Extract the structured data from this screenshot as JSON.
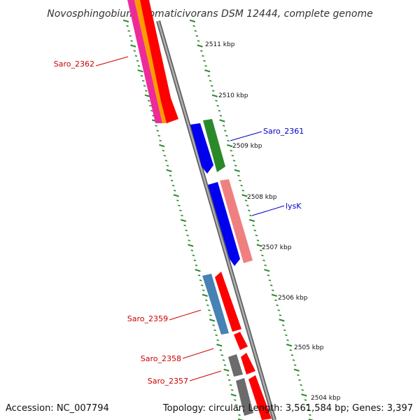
{
  "title": "Novosphingobium aromaticivorans DSM 12444, complete genome",
  "footer": {
    "accession": "Accession: NC_007794",
    "summary": "Topology: circular; Length: 3,561,584 bp; Genes: 3,397"
  },
  "ticks": [
    {
      "kbp": 2511,
      "label": "2511 kbp"
    },
    {
      "kbp": 2510,
      "label": "2510 kbp"
    },
    {
      "kbp": 2509,
      "label": "2509 kbp"
    },
    {
      "kbp": 2508,
      "label": "2508 kbp"
    },
    {
      "kbp": 2507,
      "label": "2507 kbp"
    },
    {
      "kbp": 2506,
      "label": "2506 kbp"
    },
    {
      "kbp": 2505,
      "label": "2505 kbp"
    },
    {
      "kbp": 2504,
      "label": "2504 kbp"
    }
  ],
  "gene_labels": [
    {
      "name": "Saro_2362",
      "color": "#cc0000"
    },
    {
      "name": "Saro_2361",
      "color": "#0000cc"
    },
    {
      "name": "lysK",
      "color": "#0000cc"
    },
    {
      "name": "Saro_2359",
      "color": "#cc0000"
    },
    {
      "name": "Saro_2358",
      "color": "#cc0000"
    },
    {
      "name": "Saro_2357",
      "color": "#cc0000"
    }
  ],
  "colors": {
    "backbone": "#808080",
    "tick_marks": "#2e8b2e",
    "forward_red": "#ff0000",
    "pink": "#ee2a9a",
    "orange": "#ff9a00",
    "blue": "#0000ee",
    "green": "#2a8a2a",
    "salmon": "#f08080",
    "steelblue": "#4682b4",
    "gray": "#6b6b6b"
  }
}
